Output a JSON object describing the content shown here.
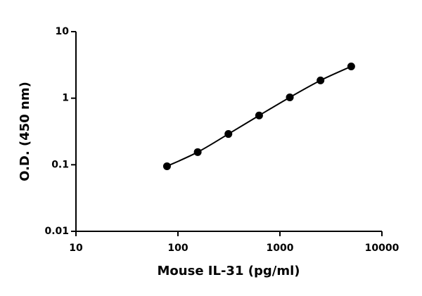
{
  "chart_data": {
    "type": "scatter",
    "x_label": "Mouse IL-31 (pg/ml)",
    "y_label": "O.D. (450 nm)",
    "x": [
      78.1,
      156.25,
      312.5,
      625,
      1250,
      2500,
      5000
    ],
    "series": [
      {
        "values": [
          0.095,
          0.155,
          0.29,
          0.55,
          1.03,
          1.85,
          3.0
        ],
        "color": "#000000"
      }
    ],
    "xlim": [
      10,
      10000
    ],
    "xticks": [
      10,
      100,
      1000,
      10000
    ],
    "ylim": [
      0.01,
      10
    ],
    "yticks": [
      0.01,
      0.1,
      1,
      10
    ],
    "xscale": "log",
    "yscale": "log",
    "curve": true,
    "grid": false
  }
}
